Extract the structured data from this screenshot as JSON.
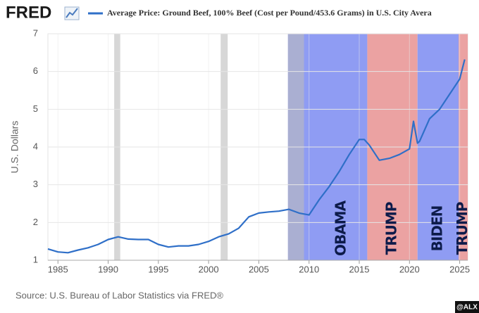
{
  "chart_data": {
    "type": "line",
    "logo": "FRED",
    "title": "Average Price: Ground Beef, 100% Beef (Cost per Pound/453.6 Grams) in U.S. City Avera",
    "ylabel": "U.S. Dollars",
    "source": "Source: U.S. Bureau of Labor Statistics via FRED®",
    "watermark": "@ALX",
    "xlim": [
      1984,
      2025.8
    ],
    "xticks": [
      1985,
      1990,
      1995,
      2000,
      2005,
      2010,
      2015,
      2020,
      2025
    ],
    "ylim": [
      1,
      7
    ],
    "yticks": [
      1,
      2,
      3,
      4,
      5,
      6,
      7
    ],
    "grid": true,
    "x": [
      1984,
      1985,
      1986,
      1987,
      1988,
      1989,
      1990,
      1991,
      1992,
      1993,
      1994,
      1995,
      1996,
      1997,
      1998,
      1999,
      2000,
      2001,
      2002,
      2003,
      2004,
      2005,
      2006,
      2007,
      2008,
      2009,
      2010,
      2011,
      2012,
      2013,
      2014,
      2015,
      2015.5,
      2016,
      2017,
      2018,
      2019,
      2020,
      2020.4,
      2020.8,
      2021,
      2022,
      2023,
      2024,
      2025,
      2025.5
    ],
    "series": [
      {
        "name": "Average Price: Ground Beef, 100% Beef (Cost per Pound/453.6 Grams) in U.S. City Avera",
        "color": "#2f6fc8",
        "values": [
          1.3,
          1.22,
          1.2,
          1.27,
          1.33,
          1.42,
          1.55,
          1.62,
          1.56,
          1.55,
          1.55,
          1.42,
          1.35,
          1.38,
          1.38,
          1.42,
          1.5,
          1.62,
          1.7,
          1.85,
          2.15,
          2.25,
          2.28,
          2.3,
          2.35,
          2.25,
          2.2,
          2.6,
          2.95,
          3.35,
          3.8,
          4.2,
          4.2,
          4.05,
          3.65,
          3.7,
          3.8,
          3.95,
          4.68,
          4.1,
          4.15,
          4.75,
          5.0,
          5.4,
          5.8,
          6.32
        ]
      }
    ],
    "recessions": [
      {
        "start": 1990.6,
        "end": 1991.2
      },
      {
        "start": 2001.2,
        "end": 2001.9
      },
      {
        "start": 2007.9,
        "end": 2009.5
      }
    ],
    "regions": [
      {
        "label": "OBAMA",
        "start": 2007.9,
        "end": 2015.8,
        "color": "#8f9cf3"
      },
      {
        "label": "TRUMP",
        "start": 2015.8,
        "end": 2020.8,
        "color": "#eba2a2"
      },
      {
        "label": "BIDEN",
        "start": 2020.8,
        "end": 2024.9,
        "color": "#8f9cf3"
      },
      {
        "label": "TRUMP",
        "start": 2024.9,
        "end": 2025.8,
        "color": "#eba2a2"
      }
    ]
  }
}
